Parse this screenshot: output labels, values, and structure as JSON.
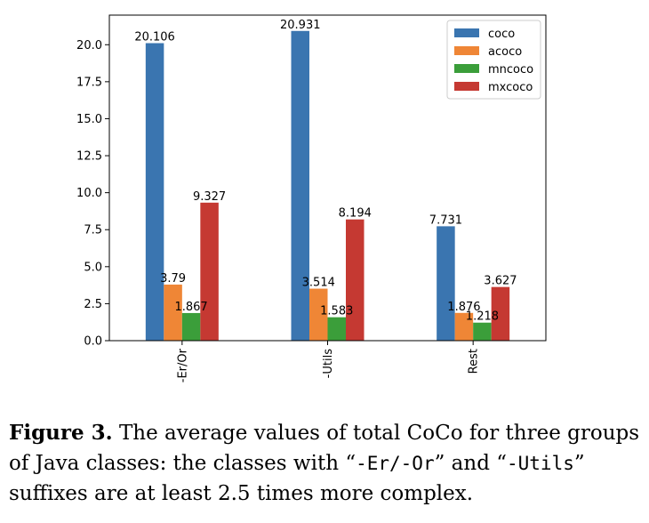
{
  "chart_data": {
    "type": "bar",
    "categories": [
      "-Er/Or",
      "-Utils",
      "Rest"
    ],
    "series": [
      {
        "name": "coco",
        "values": [
          20.106,
          20.931,
          7.731
        ],
        "color": "#3a75b0"
      },
      {
        "name": "acoco",
        "values": [
          3.79,
          3.514,
          1.876
        ],
        "color": "#ef8636"
      },
      {
        "name": "mncoco",
        "values": [
          1.867,
          1.583,
          1.218
        ],
        "color": "#3b9e3a"
      },
      {
        "name": "mxcoco",
        "values": [
          9.327,
          8.194,
          3.627
        ],
        "color": "#c53932"
      }
    ],
    "data_labels": [
      [
        "20.106",
        "20.931",
        "7.731"
      ],
      [
        "3.79",
        "3.514",
        "1.876"
      ],
      [
        "1.867",
        "1.583",
        "1.218"
      ],
      [
        "9.327",
        "8.194",
        "3.627"
      ]
    ],
    "yticks": [
      0.0,
      2.5,
      5.0,
      7.5,
      10.0,
      12.5,
      15.0,
      17.5,
      20.0
    ],
    "ytick_labels": [
      "0.0",
      "2.5",
      "5.0",
      "7.5",
      "10.0",
      "12.5",
      "15.0",
      "17.5",
      "20.0"
    ],
    "ylim": [
      0,
      22
    ],
    "legend_position": "top-right",
    "grid": false
  },
  "caption": {
    "label": "Figure 3.",
    "text_1": " The average values of total CoCo for three groups of Java classes: the classes with “",
    "code_1": "-Er/-Or",
    "text_2": "” and “",
    "code_2": "-Utils",
    "text_3": "” suffixes are at least 2.5 times more complex."
  }
}
